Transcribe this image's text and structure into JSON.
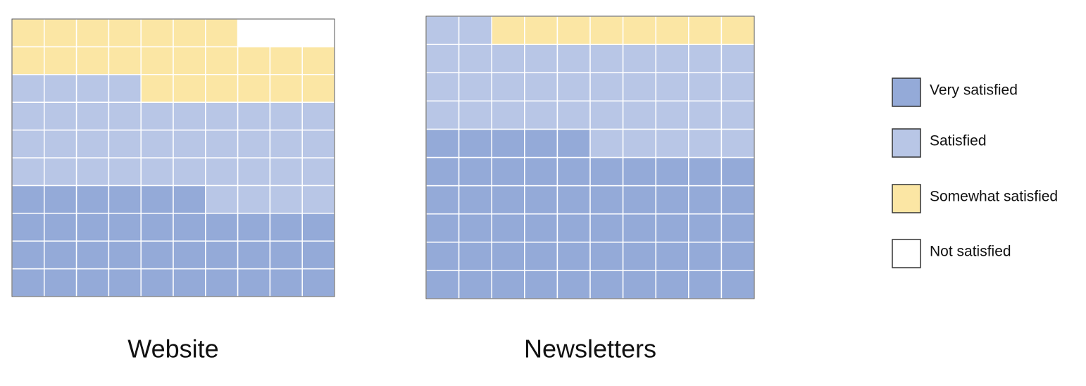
{
  "chart_data": {
    "type": "waffle",
    "categories": [
      "Website",
      "Newsletters"
    ],
    "series": [
      {
        "name": "Very satisfied",
        "color": "#94aad8",
        "values": [
          36,
          55
        ]
      },
      {
        "name": "Satisfied",
        "color": "#b8c6e6",
        "values": [
          38,
          37
        ]
      },
      {
        "name": "Somewhat satisfied",
        "color": "#fbe6a4",
        "values": [
          23,
          8
        ]
      },
      {
        "name": "Not satisfied",
        "color": "#ffffff",
        "values": [
          3,
          0
        ]
      }
    ]
  }
}
